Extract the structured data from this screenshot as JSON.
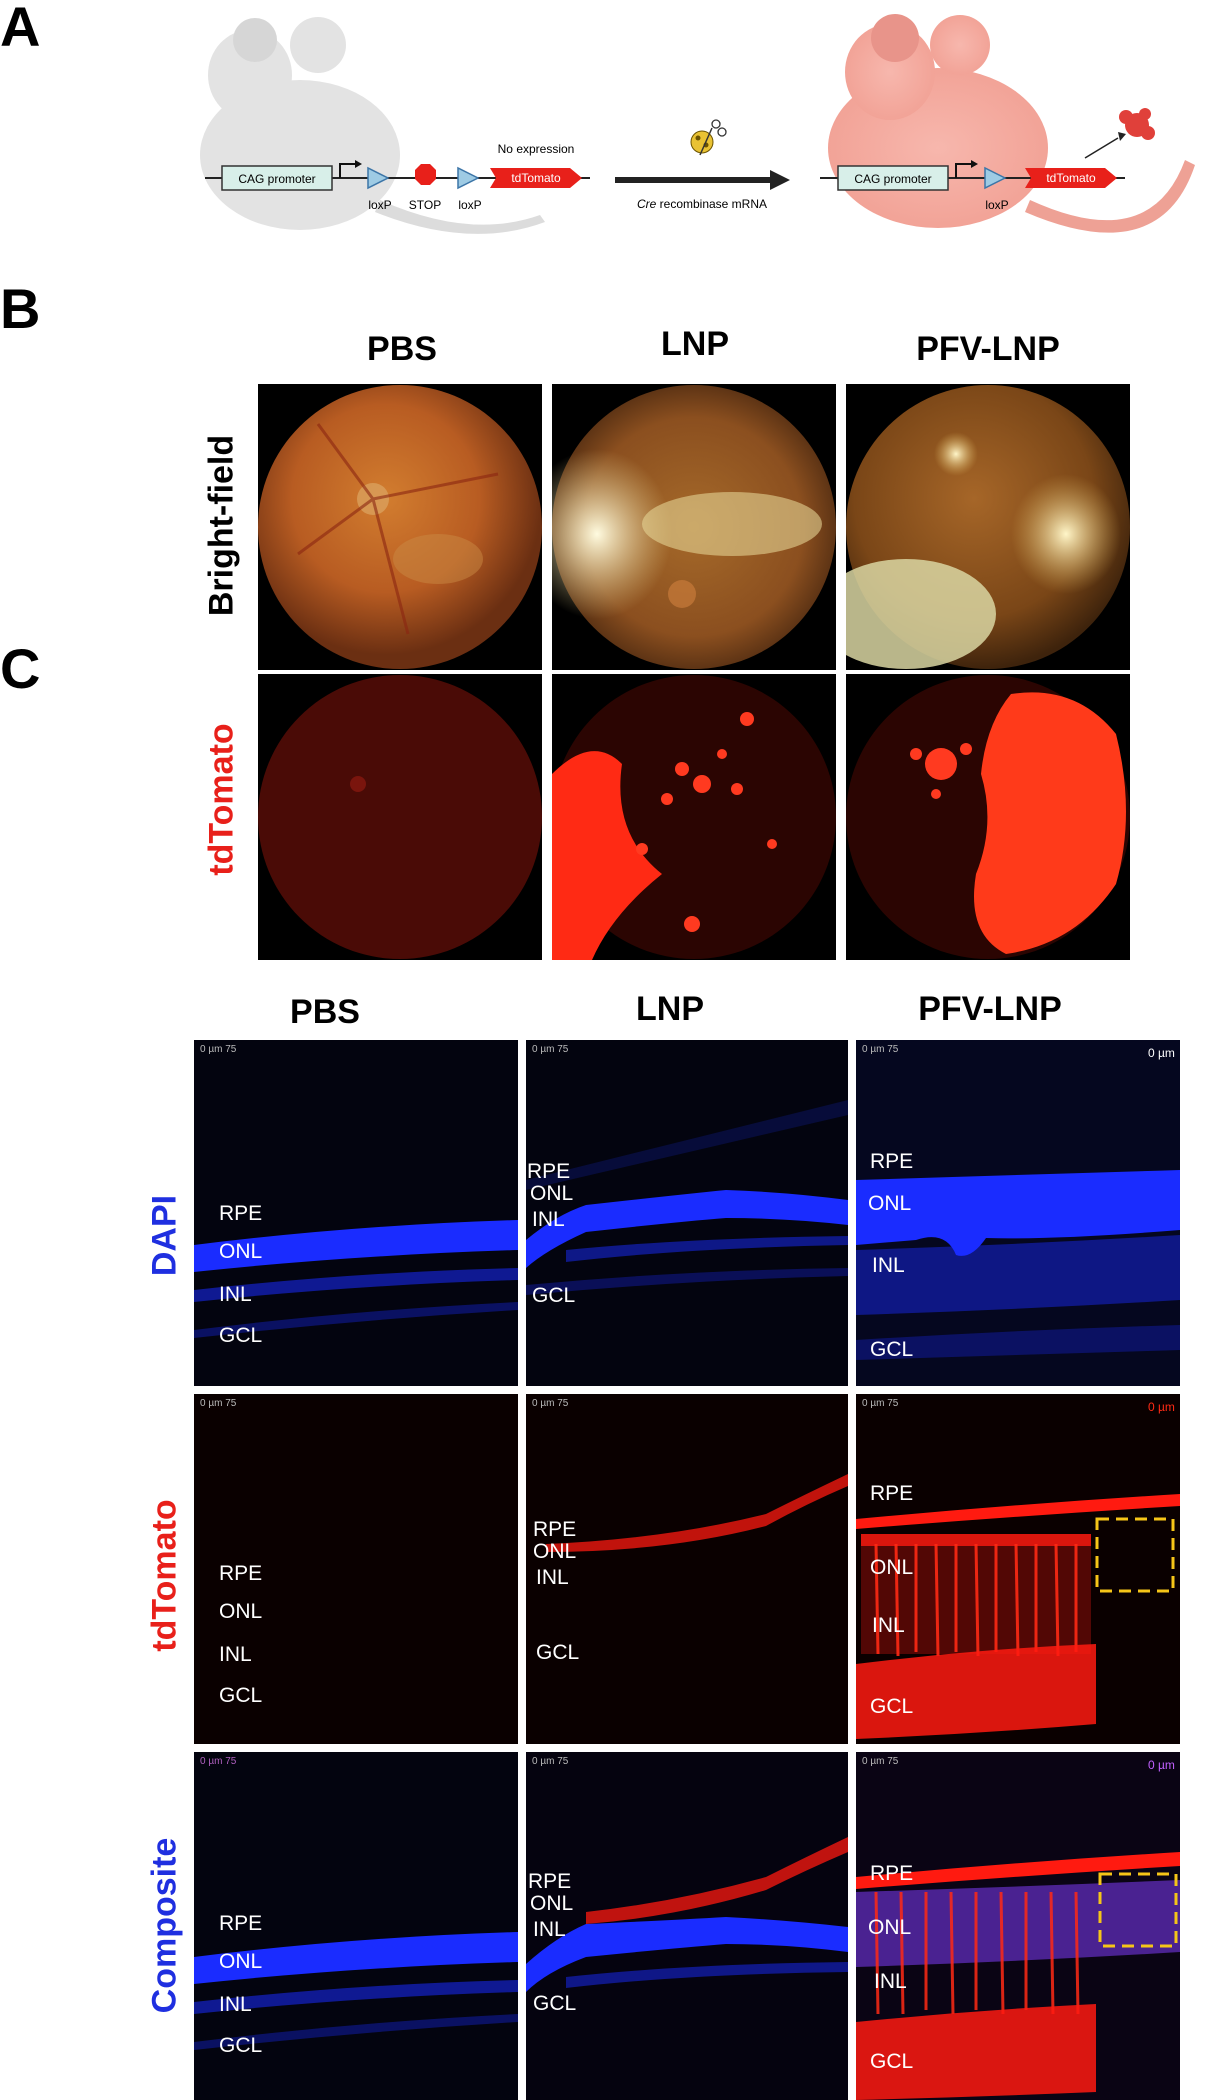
{
  "panels": {
    "a": "A",
    "b": "B",
    "c": "C"
  },
  "schematic": {
    "left_promoter": "CAG promoter",
    "loxp1": "loxP",
    "stop": "STOP",
    "loxp2": "loxP",
    "no_expression": "No expression",
    "reporter_left": "tdTomato",
    "arrow_label_italic": "Cre",
    "arrow_label_rest": " recombinase mRNA",
    "right_promoter": "CAG promoter",
    "loxp_right": "loxP",
    "reporter_right": "tdTomato"
  },
  "fundus": {
    "columns": [
      "PBS",
      "LNP",
      "PFV-LNP"
    ],
    "rows": [
      "Bright-field",
      "tdTomato"
    ]
  },
  "sections": {
    "columns": [
      "PBS",
      "LNP",
      "PFV-LNP"
    ],
    "rows": [
      "DAPI",
      "tdTomato",
      "Composite"
    ],
    "scale_text": "0 µm 75",
    "corner_text": "0 µm",
    "layers": {
      "rpe": "RPE",
      "onl": "ONL",
      "inl": "INL",
      "gcl": "GCL"
    }
  },
  "colors": {
    "dapi_blue": "#1a2cff",
    "tdtomato_red": "#ff1a10",
    "highlight_box": "#f5c518",
    "row_label_blue": "#1f2fe0",
    "row_label_red": "#e8201a"
  }
}
